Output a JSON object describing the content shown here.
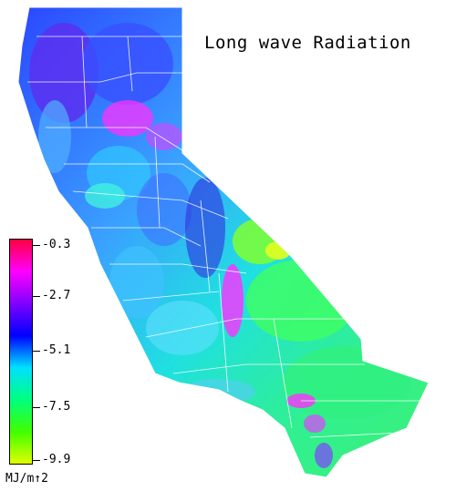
{
  "title": "Long wave Radiation",
  "legend": {
    "units": "MJ/m↑2",
    "ticks": [
      "-0.3",
      "-2.7",
      "-5.1",
      "-7.5",
      "-9.9"
    ],
    "colors": [
      "#ff0040",
      "#ff00ff",
      "#8000ff",
      "#0000ff",
      "#00e0ff",
      "#00ff80",
      "#40ff00",
      "#e0ff00"
    ]
  },
  "map": {
    "region": "California",
    "border_color": "#ffffff"
  }
}
